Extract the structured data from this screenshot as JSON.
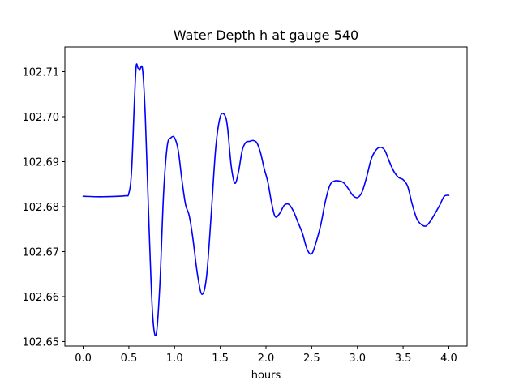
{
  "chart_data": {
    "type": "line",
    "title": "Water Depth h at gauge 540",
    "xlabel": "hours",
    "ylabel": "",
    "xlim": [
      -0.2,
      4.2
    ],
    "ylim": [
      102.649,
      102.7155
    ],
    "xticks": [
      0.0,
      0.5,
      1.0,
      1.5,
      2.0,
      2.5,
      3.0,
      3.5,
      4.0
    ],
    "xtick_labels": [
      "0.0",
      "0.5",
      "1.0",
      "1.5",
      "2.0",
      "2.5",
      "3.0",
      "3.5",
      "4.0"
    ],
    "yticks": [
      102.65,
      102.66,
      102.67,
      102.68,
      102.69,
      102.7,
      102.71
    ],
    "ytick_labels": [
      "102.65",
      "102.66",
      "102.67",
      "102.68",
      "102.69",
      "102.70",
      "102.71"
    ],
    "grid": false,
    "series": [
      {
        "color": "#0000ff",
        "x": [
          0.0,
          0.2,
          0.45,
          0.5,
          0.53,
          0.56,
          0.58,
          0.6,
          0.62,
          0.65,
          0.68,
          0.72,
          0.76,
          0.8,
          0.84,
          0.88,
          0.92,
          0.96,
          1.0,
          1.04,
          1.08,
          1.12,
          1.16,
          1.2,
          1.25,
          1.3,
          1.35,
          1.4,
          1.45,
          1.5,
          1.55,
          1.58,
          1.62,
          1.66,
          1.7,
          1.74,
          1.78,
          1.82,
          1.86,
          1.9,
          1.94,
          1.98,
          2.02,
          2.06,
          2.1,
          2.15,
          2.2,
          2.25,
          2.3,
          2.35,
          2.4,
          2.45,
          2.5,
          2.55,
          2.6,
          2.65,
          2.7,
          2.75,
          2.8,
          2.85,
          2.9,
          2.95,
          3.0,
          3.05,
          3.1,
          3.15,
          3.2,
          3.25,
          3.3,
          3.35,
          3.4,
          3.45,
          3.5,
          3.55,
          3.6,
          3.65,
          3.7,
          3.75,
          3.8,
          3.85,
          3.9,
          3.95,
          4.0
        ],
        "y": [
          102.6823,
          102.6822,
          102.6824,
          102.683,
          102.688,
          102.703,
          102.7112,
          102.7108,
          102.7105,
          102.7105,
          102.7,
          102.676,
          102.656,
          102.6517,
          102.663,
          102.683,
          102.6935,
          102.6953,
          102.6953,
          102.6925,
          102.686,
          102.6805,
          102.678,
          102.673,
          102.665,
          102.6605,
          102.6645,
          102.678,
          102.693,
          102.7,
          102.7003,
          102.6975,
          102.689,
          102.6852,
          102.6878,
          102.6925,
          102.6943,
          102.6945,
          102.6947,
          102.6942,
          102.692,
          102.6885,
          102.6855,
          102.681,
          102.6778,
          102.6785,
          102.6803,
          102.6805,
          102.679,
          102.6765,
          102.674,
          102.6705,
          102.6695,
          102.6722,
          102.676,
          102.6812,
          102.6848,
          102.6857,
          102.6857,
          102.6853,
          102.684,
          102.6825,
          102.682,
          102.6832,
          102.6865,
          102.6905,
          102.6925,
          102.6932,
          102.6925,
          102.69,
          102.6878,
          102.6865,
          102.686,
          102.6845,
          102.6805,
          102.6773,
          102.676,
          102.6757,
          102.6768,
          102.6785,
          102.6803,
          102.6823,
          102.6825
        ]
      }
    ]
  }
}
